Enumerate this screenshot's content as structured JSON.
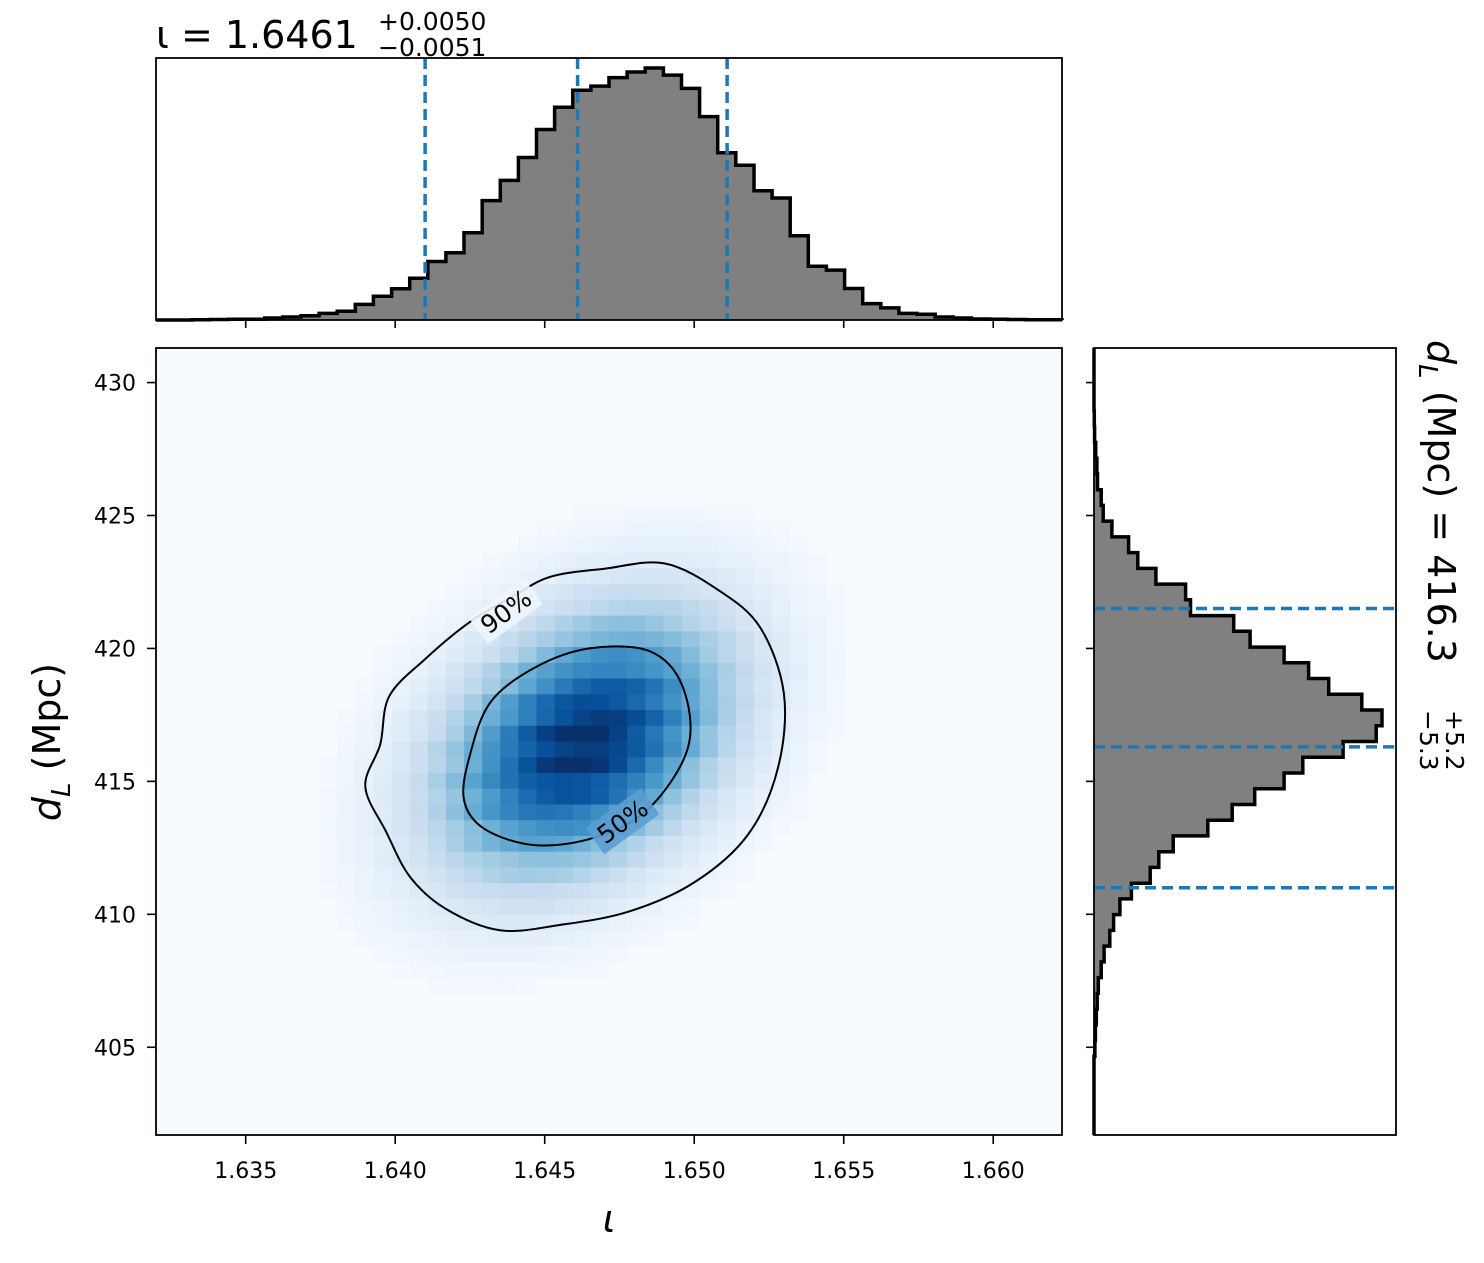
{
  "chart_data": [
    {
      "type": "histogram",
      "panel": "top-marginal",
      "variable": "ι",
      "title": {
        "prefix": "ι = 1.6461",
        "upper": "+0.0050",
        "lower": "−0.0051"
      },
      "x_range": [
        1.632,
        1.6623
      ],
      "bin_edges_start": 1.632,
      "bin_width": 0.000606,
      "counts": [
        0.0,
        0.0,
        0.001,
        0.002,
        0.003,
        0.003,
        0.008,
        0.012,
        0.017,
        0.026,
        0.035,
        0.062,
        0.094,
        0.124,
        0.166,
        0.232,
        0.267,
        0.346,
        0.474,
        0.554,
        0.645,
        0.756,
        0.844,
        0.912,
        0.928,
        0.962,
        0.984,
        1.0,
        0.972,
        0.919,
        0.807,
        0.664,
        0.614,
        0.513,
        0.484,
        0.334,
        0.213,
        0.198,
        0.125,
        0.065,
        0.048,
        0.026,
        0.023,
        0.012,
        0.008,
        0.004,
        0.003,
        0.002,
        0.001,
        0.001
      ],
      "quantile_lines": [
        1.641,
        1.6461,
        1.6511
      ],
      "fill_color": "#808080",
      "quantile_color": "#1f77b4"
    },
    {
      "type": "heatmap",
      "panel": "joint",
      "x_variable": "ι",
      "y_variable": "d_L",
      "xlabel": "ι",
      "ylabel": "d_L (Mpc)",
      "x_range": [
        1.632,
        1.6623
      ],
      "y_range": [
        401.7,
        431.3
      ],
      "x_ticks": [
        "1.635",
        "1.640",
        "1.645",
        "1.650",
        "1.655",
        "1.660"
      ],
      "x_tick_values": [
        1.635,
        1.64,
        1.645,
        1.65,
        1.655,
        1.66
      ],
      "y_ticks": [
        "405",
        "410",
        "415",
        "420",
        "425",
        "430"
      ],
      "y_tick_values": [
        405,
        410,
        415,
        420,
        425,
        430
      ],
      "density_peak": {
        "x": 1.6463,
        "y": 416.4
      },
      "density_sigma": {
        "x": 0.0031,
        "y": 3.2
      },
      "density_correlation": 0.35,
      "colormap": [
        "#f7fbff",
        "#deebf7",
        "#c6dbef",
        "#9ecae1",
        "#6baed6",
        "#4292c6",
        "#2171b5",
        "#08519c",
        "#08306b"
      ],
      "contours": [
        {
          "label": "90%",
          "points": [
            [
              1.6417,
              410.2
            ],
            [
              1.6435,
              409.4
            ],
            [
              1.6455,
              409.6
            ],
            [
              1.6478,
              410.1
            ],
            [
              1.65,
              411.2
            ],
            [
              1.6518,
              413.0
            ],
            [
              1.6528,
              415.5
            ],
            [
              1.653,
              418.3
            ],
            [
              1.6522,
              420.8
            ],
            [
              1.6508,
              422.2
            ],
            [
              1.649,
              423.2
            ],
            [
              1.647,
              423.0
            ],
            [
              1.6452,
              422.7
            ],
            [
              1.644,
              422.0
            ],
            [
              1.6425,
              421.0
            ],
            [
              1.641,
              419.6
            ],
            [
              1.6398,
              418.2
            ],
            [
              1.6395,
              416.4
            ],
            [
              1.639,
              414.8
            ],
            [
              1.6397,
              413.1
            ],
            [
              1.6405,
              411.4
            ]
          ],
          "label_position": {
            "x": 1.6437,
            "y": 421.4,
            "angle": -36
          }
        },
        {
          "label": "50%",
          "points": [
            [
              1.643,
              413.2
            ],
            [
              1.6447,
              412.6
            ],
            [
              1.6467,
              412.9
            ],
            [
              1.6485,
              414.0
            ],
            [
              1.6498,
              416.3
            ],
            [
              1.6496,
              418.6
            ],
            [
              1.6485,
              419.9
            ],
            [
              1.6465,
              420.0
            ],
            [
              1.6447,
              419.3
            ],
            [
              1.6432,
              418.0
            ],
            [
              1.6425,
              416.0
            ],
            [
              1.6423,
              414.3
            ]
          ],
          "label_position": {
            "x": 1.6476,
            "y": 413.5,
            "angle": -36
          }
        }
      ]
    },
    {
      "type": "histogram",
      "panel": "right-marginal",
      "orientation": "horizontal",
      "variable": "d_L",
      "title": {
        "prefix": "d_L (Mpc) = 416.3",
        "upper": "+5.2",
        "lower": "−5.3"
      },
      "y_range": [
        401.7,
        431.3
      ],
      "bin_edges_start": 401.7,
      "bin_width": 0.592,
      "counts": [
        0.0,
        0.0,
        0.0,
        0.0,
        0.0,
        0.003,
        0.005,
        0.008,
        0.011,
        0.015,
        0.025,
        0.035,
        0.055,
        0.068,
        0.09,
        0.13,
        0.195,
        0.225,
        0.275,
        0.395,
        0.48,
        0.558,
        0.66,
        0.725,
        0.865,
        0.98,
        1.0,
        0.93,
        0.815,
        0.745,
        0.66,
        0.542,
        0.485,
        0.335,
        0.318,
        0.215,
        0.152,
        0.12,
        0.062,
        0.032,
        0.025,
        0.012,
        0.01,
        0.006,
        0.002,
        0.001,
        0.0,
        0.0,
        0.0,
        0.0
      ],
      "quantile_lines": [
        411.0,
        416.3,
        421.5
      ],
      "fill_color": "#808080",
      "quantile_color": "#1f77b4"
    }
  ]
}
